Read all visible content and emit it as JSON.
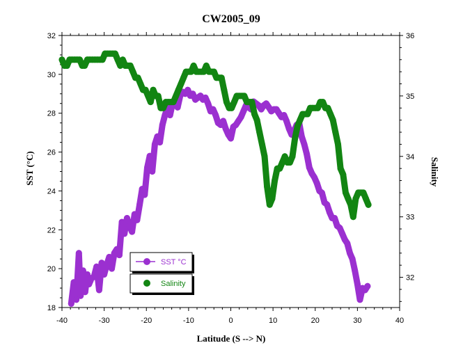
{
  "chart_data": {
    "type": "line",
    "title": "CW2005_09",
    "xlabel": "Latitude (S --> N)",
    "ylabel": "SST (°C)",
    "y2label": "Salinity",
    "xlim": [
      -40,
      40
    ],
    "ylim": [
      18,
      32
    ],
    "y2lim": [
      31.5,
      36
    ],
    "x_ticks": [
      -40,
      -30,
      -20,
      -10,
      0,
      10,
      20,
      30,
      40
    ],
    "y_ticks": [
      18,
      20,
      22,
      24,
      26,
      28,
      30,
      32
    ],
    "y2_ticks": [
      32,
      33,
      34,
      35,
      36
    ],
    "grid": false,
    "legend_position": "bottom-left",
    "series": [
      {
        "name": "SST °C",
        "color": "#9b30d0",
        "axis": "left",
        "x": [
          -37.8,
          -37.2,
          -36.6,
          -36.0,
          -35.6,
          -35.0,
          -34.5,
          -34.0,
          -33.6,
          -33.0,
          -32.4,
          -31.8,
          -31.2,
          -30.6,
          -30.0,
          -29.4,
          -28.8,
          -28.2,
          -27.6,
          -27.0,
          -26.4,
          -25.8,
          -25.2,
          -24.6,
          -24.0,
          -23.4,
          -22.8,
          -22.2,
          -21.6,
          -21.0,
          -20.4,
          -19.8,
          -19.2,
          -18.6,
          -18.0,
          -17.4,
          -16.8,
          -16.2,
          -15.6,
          -15.0,
          -14.4,
          -13.8,
          -13.2,
          -12.6,
          -12.0,
          -11.4,
          -10.8,
          -10.2,
          -9.6,
          -9.0,
          -8.4,
          -7.8,
          -7.2,
          -6.6,
          -6.0,
          -5.4,
          -4.8,
          -4.2,
          -3.6,
          -3.0,
          -2.4,
          -1.8,
          -1.2,
          -0.6,
          0.0,
          0.6,
          1.2,
          1.8,
          2.4,
          3.0,
          3.6,
          4.2,
          4.8,
          5.4,
          6.0,
          6.6,
          7.2,
          7.8,
          8.4,
          9.0,
          9.6,
          10.2,
          10.8,
          11.4,
          12.0,
          12.6,
          13.2,
          13.8,
          14.4,
          15.0,
          15.6,
          16.2,
          16.8,
          17.4,
          18.0,
          18.6,
          19.2,
          19.8,
          20.4,
          21.0,
          21.6,
          22.2,
          22.8,
          23.4,
          24.0,
          24.6,
          25.2,
          25.8,
          26.4,
          27.0,
          27.6,
          28.2,
          28.8,
          29.4,
          30.0,
          30.6,
          31.2,
          31.8,
          32.4
        ],
        "y": [
          18.2,
          19.3,
          18.4,
          20.8,
          18.6,
          19.9,
          18.8,
          19.7,
          19.2,
          19.5,
          19.6,
          20.1,
          18.9,
          20.3,
          19.7,
          20.2,
          20.6,
          20.0,
          20.8,
          21.0,
          20.7,
          22.4,
          21.8,
          22.6,
          22.2,
          21.9,
          22.8,
          22.5,
          23.3,
          24.1,
          23.8,
          25.2,
          25.8,
          25.0,
          26.4,
          26.8,
          26.5,
          27.4,
          27.9,
          28.3,
          27.9,
          28.5,
          28.6,
          28.3,
          28.9,
          29.1,
          29.0,
          29.2,
          28.9,
          29.0,
          28.7,
          28.8,
          28.9,
          28.7,
          28.8,
          28.5,
          28.1,
          28.2,
          27.9,
          27.5,
          27.4,
          27.6,
          27.2,
          26.9,
          26.7,
          27.3,
          27.4,
          27.6,
          27.8,
          28.1,
          28.4,
          28.3,
          28.2,
          28.6,
          28.5,
          28.4,
          28.2,
          28.4,
          28.5,
          28.3,
          28.1,
          28.2,
          28.2,
          28.0,
          27.8,
          27.9,
          27.6,
          27.2,
          26.9,
          27.1,
          27.4,
          27.5,
          26.8,
          26.4,
          25.9,
          25.2,
          24.9,
          24.7,
          24.4,
          24.0,
          23.9,
          23.4,
          23.3,
          22.9,
          22.6,
          22.6,
          22.2,
          22.1,
          21.8,
          21.5,
          21.3,
          20.8,
          20.5,
          19.9,
          19.2,
          18.4,
          19.0,
          18.9,
          19.1
        ]
      },
      {
        "name": "Salinity",
        "color": "#128512",
        "axis": "right",
        "x": [
          -40.0,
          -39.4,
          -38.8,
          -38.2,
          -37.6,
          -37.0,
          -36.4,
          -35.8,
          -35.2,
          -34.6,
          -34.0,
          -33.4,
          -32.8,
          -32.2,
          -31.6,
          -31.0,
          -30.4,
          -29.8,
          -29.2,
          -28.6,
          -28.0,
          -27.4,
          -26.8,
          -26.2,
          -25.6,
          -25.0,
          -24.4,
          -23.8,
          -23.2,
          -22.6,
          -22.0,
          -21.4,
          -20.8,
          -20.2,
          -19.6,
          -19.0,
          -18.4,
          -17.8,
          -17.2,
          -16.6,
          -16.0,
          -15.4,
          -14.8,
          -14.2,
          -13.6,
          -13.0,
          -12.4,
          -11.8,
          -11.2,
          -10.6,
          -10.0,
          -9.4,
          -8.8,
          -8.2,
          -7.6,
          -7.0,
          -6.4,
          -5.8,
          -5.2,
          -4.6,
          -4.0,
          -3.4,
          -2.8,
          -2.2,
          -1.6,
          -1.0,
          -0.4,
          0.2,
          0.8,
          1.4,
          2.0,
          2.6,
          3.2,
          3.8,
          4.4,
          5.0,
          5.6,
          6.2,
          6.8,
          7.4,
          8.0,
          8.6,
          9.2,
          9.8,
          10.4,
          11.0,
          11.6,
          12.2,
          12.8,
          13.4,
          14.0,
          14.6,
          15.2,
          15.8,
          16.4,
          17.0,
          17.6,
          18.2,
          18.8,
          19.4,
          20.0,
          20.6,
          21.2,
          21.8,
          22.4,
          23.0,
          23.6,
          24.2,
          24.8,
          25.4,
          26.0,
          26.6,
          27.2,
          27.8,
          28.4,
          29.0,
          29.6,
          30.2,
          30.8,
          31.4,
          32.0,
          32.6
        ],
        "y": [
          35.6,
          35.5,
          35.5,
          35.6,
          35.6,
          35.6,
          35.6,
          35.6,
          35.5,
          35.5,
          35.6,
          35.6,
          35.6,
          35.6,
          35.6,
          35.6,
          35.6,
          35.7,
          35.7,
          35.7,
          35.7,
          35.7,
          35.6,
          35.5,
          35.6,
          35.5,
          35.5,
          35.5,
          35.4,
          35.3,
          35.3,
          35.2,
          35.1,
          35.1,
          35.0,
          34.9,
          35.1,
          35.0,
          35.0,
          34.8,
          34.8,
          34.9,
          34.9,
          34.9,
          34.9,
          35.0,
          35.1,
          35.2,
          35.3,
          35.4,
          35.4,
          35.4,
          35.5,
          35.4,
          35.4,
          35.4,
          35.4,
          35.5,
          35.4,
          35.4,
          35.4,
          35.3,
          35.3,
          35.3,
          35.1,
          34.9,
          34.8,
          34.8,
          34.9,
          35.0,
          35.0,
          35.0,
          35.0,
          34.9,
          34.9,
          34.9,
          34.7,
          34.6,
          34.4,
          34.2,
          34.0,
          33.5,
          33.2,
          33.3,
          33.6,
          33.8,
          33.8,
          33.9,
          34.0,
          33.9,
          33.9,
          34.0,
          34.3,
          34.5,
          34.6,
          34.7,
          34.7,
          34.7,
          34.8,
          34.8,
          34.8,
          34.8,
          34.9,
          34.9,
          34.8,
          34.8,
          34.7,
          34.6,
          34.4,
          34.2,
          33.8,
          33.7,
          33.4,
          33.3,
          33.2,
          33.0,
          33.3,
          33.4,
          33.4,
          33.4,
          33.3,
          33.2
        ]
      }
    ]
  }
}
